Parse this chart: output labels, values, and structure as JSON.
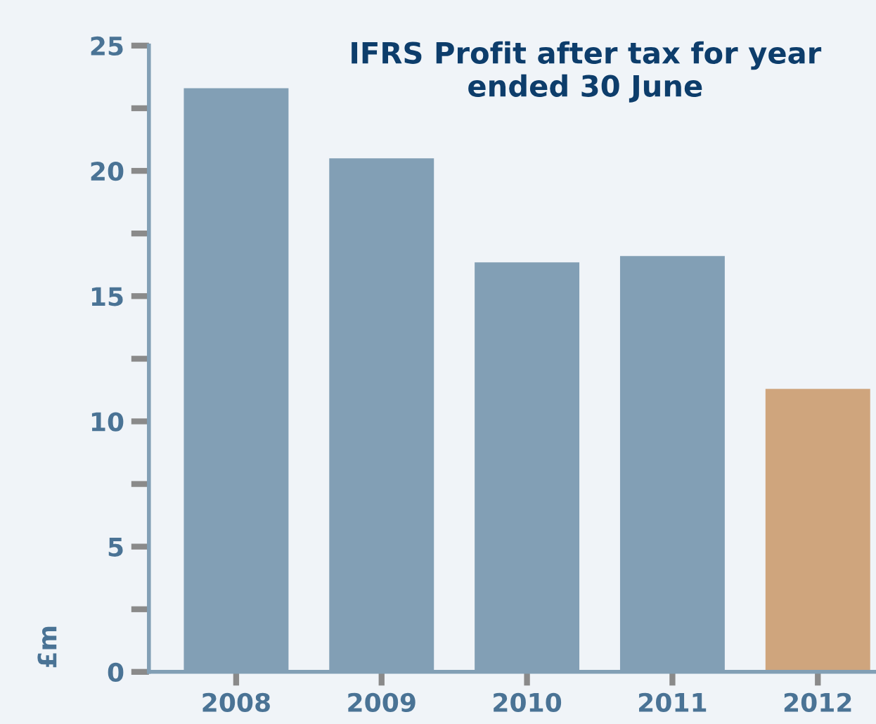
{
  "chart_data": {
    "type": "bar",
    "title": "IFRS Profit after tax for year\nended 30 June",
    "ylabel": "£m",
    "categories": [
      "2008",
      "2009",
      "2010",
      "2011",
      "2012"
    ],
    "values": [
      23.3,
      20.5,
      16.35,
      16.6,
      11.3
    ],
    "colors": [
      "#829fb5",
      "#829fb5",
      "#829fb5",
      "#829fb5",
      "#cfa57d"
    ],
    "ylim": [
      0,
      25
    ],
    "yticks": [
      0,
      {
        "value": 2.5,
        "label": null
      },
      5,
      {
        "value": 7.5,
        "label": null
      },
      10,
      {
        "value": 12.5,
        "label": null
      },
      15,
      {
        "value": 17.5,
        "label": null
      },
      20,
      {
        "value": 22.5,
        "label": null
      },
      25
    ],
    "grid": false,
    "legend": false
  }
}
